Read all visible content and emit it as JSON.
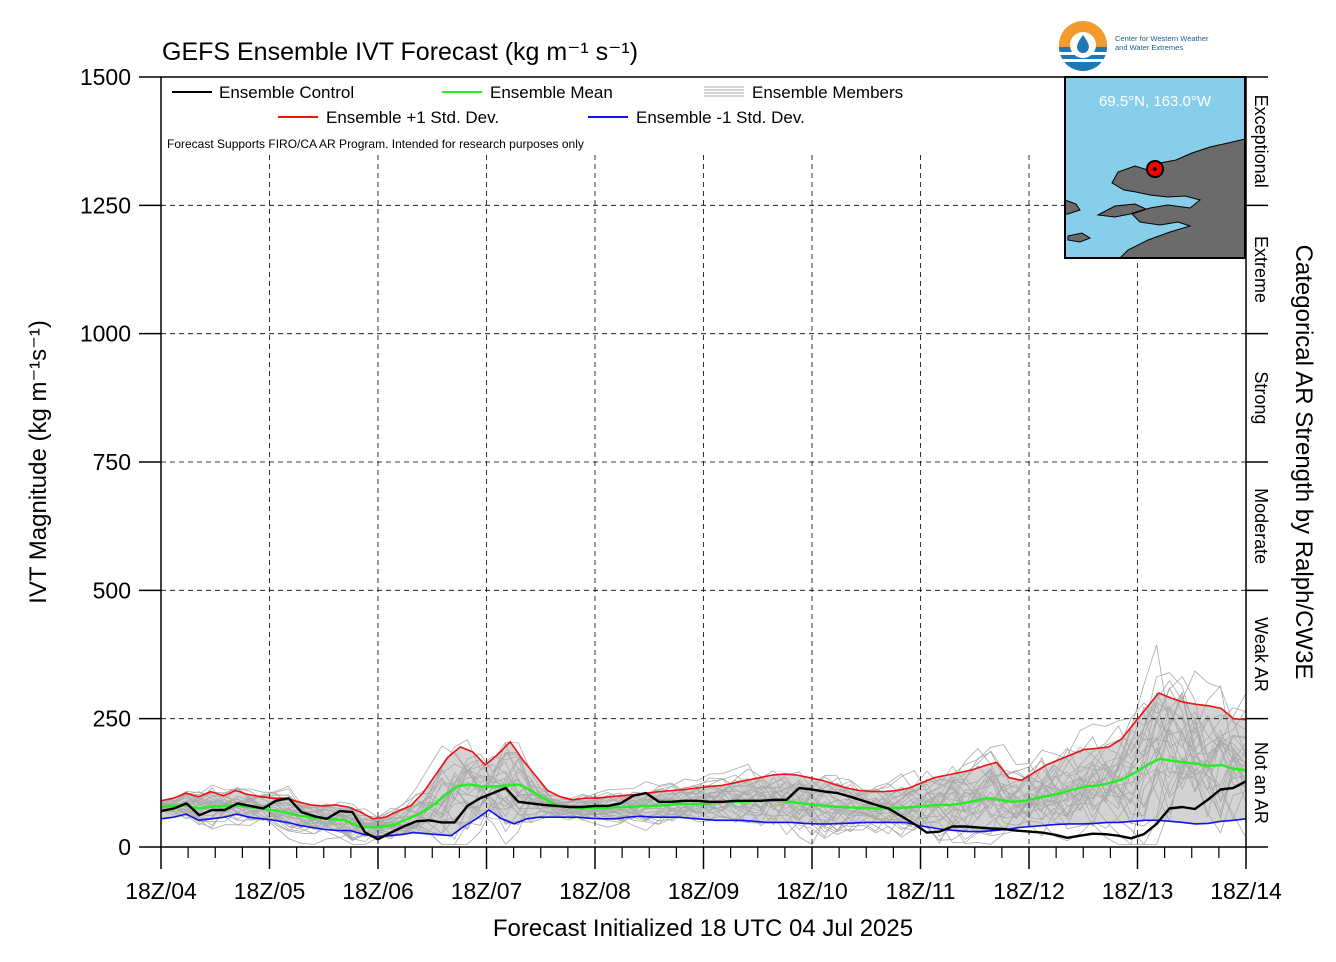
{
  "chart_data": {
    "type": "line",
    "title": "GEFS Ensemble IVT Forecast (kg m⁻¹ s⁻¹)",
    "xlabel": "Forecast Initialized 18 UTC 04 Jul 2025",
    "ylabel": "IVT Magnitude (kg m⁻¹s⁻¹)",
    "right_label": "Categorical AR Strength by Ralph/CW3E",
    "disclaimer": "Forecast Supports FIRO/CA AR Program. Intended for research purposes only",
    "ylim": [
      0,
      1500
    ],
    "yticks": [
      0,
      250,
      500,
      750,
      1000,
      1250,
      1500
    ],
    "xlim": [
      0,
      60
    ],
    "xticks": [
      "18Z/04",
      "18Z/05",
      "18Z/06",
      "18Z/07",
      "18Z/08",
      "18Z/09",
      "18Z/10",
      "18Z/11",
      "18Z/12",
      "18Z/13",
      "18Z/14"
    ],
    "grid": true,
    "legend_placement": "top-left",
    "legend": {
      "control": "Ensemble Control",
      "mean": "Ensemble Mean",
      "members": "Ensemble Members",
      "plus_std": "Ensemble +1 Std. Dev.",
      "minus_std": "Ensemble -1 Std. Dev."
    },
    "categories_ar": [
      {
        "label": "Not an AR",
        "range": [
          0,
          250
        ]
      },
      {
        "label": "Weak AR",
        "range": [
          250,
          500
        ]
      },
      {
        "label": "Moderate",
        "range": [
          500,
          750
        ]
      },
      {
        "label": "Strong",
        "range": [
          750,
          1000
        ]
      },
      {
        "label": "Extreme",
        "range": [
          1000,
          1250
        ]
      },
      {
        "label": "Exceptional",
        "range": [
          1250,
          1500
        ]
      }
    ],
    "colors": {
      "control": "#000000",
      "mean": "#22ee22",
      "plus_std": "#ee1111",
      "minus_std": "#1111ee",
      "members": "#aaaaaa",
      "spread_fill": "#d3d3d3",
      "map_water": "#87ceeb",
      "map_land": "#6b6b6b"
    },
    "series": [
      {
        "name": "Ensemble Control",
        "values": [
          70,
          75,
          85,
          62,
          72,
          72,
          85,
          80,
          75,
          90,
          95,
          68,
          60,
          55,
          70,
          68,
          28,
          15,
          28,
          40,
          50,
          52,
          48,
          48,
          80,
          95,
          105,
          115,
          88,
          85,
          82,
          80,
          78,
          78,
          80,
          80,
          85,
          100,
          105,
          88,
          88,
          90,
          90,
          88,
          88,
          90,
          90,
          90,
          92,
          92,
          115,
          112,
          108,
          105,
          98,
          90,
          82,
          75,
          60,
          45,
          28,
          30,
          40,
          40,
          38,
          36,
          35,
          32,
          30,
          28,
          24,
          18,
          22,
          26,
          25,
          22,
          17,
          25,
          45,
          75,
          78,
          74,
          92,
          112,
          115,
          128
        ]
      },
      {
        "name": "Ensemble Mean",
        "values": [
          78,
          80,
          82,
          75,
          78,
          80,
          82,
          78,
          76,
          72,
          68,
          62,
          58,
          56,
          54,
          52,
          40,
          38,
          40,
          44,
          55,
          65,
          80,
          100,
          118,
          122,
          118,
          118,
          120,
          122,
          110,
          95,
          82,
          78,
          76,
          76,
          76,
          78,
          78,
          80,
          80,
          82,
          84,
          84,
          84,
          86,
          88,
          88,
          90,
          90,
          90,
          88,
          85,
          82,
          80,
          78,
          77,
          76,
          75,
          76,
          76,
          78,
          80,
          82,
          82,
          85,
          90,
          95,
          92,
          88,
          90,
          95,
          100,
          105,
          112,
          118,
          120,
          125,
          132,
          145,
          160,
          172,
          168,
          165,
          162,
          158,
          160,
          152,
          150
        ]
      },
      {
        "name": "Ensemble +1 Std. Dev.",
        "values": [
          90,
          95,
          105,
          98,
          108,
          100,
          110,
          102,
          98,
          95,
          95,
          88,
          82,
          80,
          82,
          78,
          68,
          55,
          58,
          70,
          80,
          105,
          140,
          175,
          195,
          185,
          160,
          180,
          205,
          170,
          140,
          110,
          98,
          92,
          95,
          95,
          98,
          100,
          102,
          105,
          108,
          110,
          112,
          115,
          118,
          120,
          125,
          130,
          135,
          140,
          142,
          140,
          135,
          130,
          122,
          115,
          110,
          108,
          108,
          110,
          115,
          125,
          135,
          140,
          145,
          150,
          158,
          165,
          135,
          130,
          145,
          160,
          170,
          180,
          190,
          192,
          195,
          210,
          240,
          270,
          300,
          290,
          282,
          278,
          275,
          270,
          250,
          248
        ]
      },
      {
        "name": "Ensemble -1 Std. Dev.",
        "values": [
          55,
          58,
          64,
          52,
          55,
          58,
          64,
          58,
          55,
          52,
          48,
          42,
          38,
          34,
          32,
          32,
          25,
          20,
          22,
          24,
          28,
          26,
          24,
          22,
          40,
          55,
          72,
          55,
          45,
          55,
          58,
          58,
          58,
          58,
          56,
          55,
          55,
          58,
          60,
          58,
          58,
          58,
          56,
          54,
          52,
          52,
          52,
          50,
          48,
          48,
          48,
          46,
          45,
          45,
          46,
          47,
          48,
          48,
          48,
          48,
          42,
          38,
          34,
          32,
          30,
          30,
          32,
          34,
          38,
          40,
          42,
          44,
          45,
          45,
          46,
          48,
          48,
          50,
          52,
          52,
          50,
          48,
          45,
          46,
          50,
          52,
          55
        ]
      }
    ],
    "members_range": {
      "min": 0,
      "max": 515
    }
  },
  "logo": {
    "line1": "Center for Western Weather",
    "line2": "and Water Extremes"
  },
  "inset_map": {
    "location": "69.5°N, 163.0°W"
  }
}
